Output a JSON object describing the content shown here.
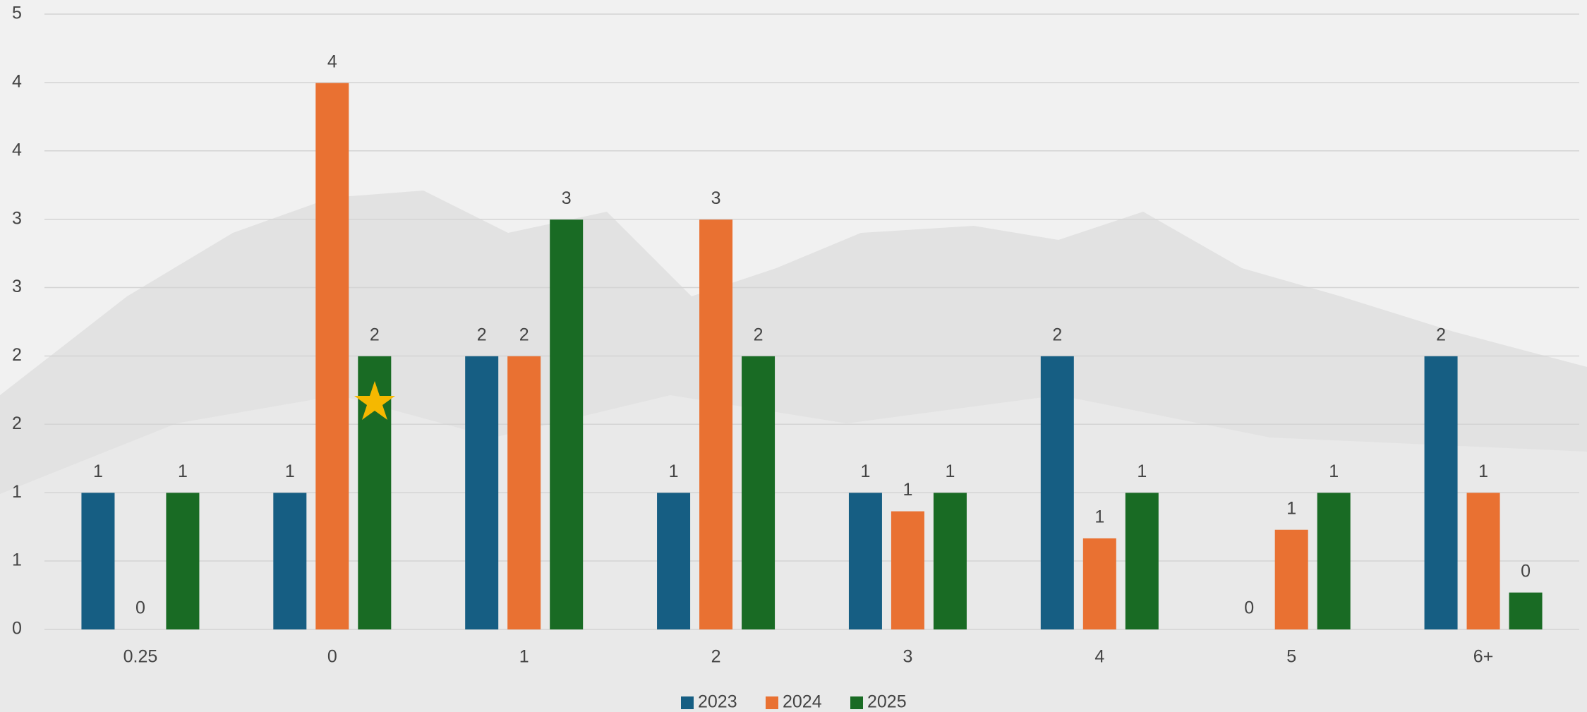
{
  "chart_data": {
    "type": "bar",
    "categories": [
      "0.25",
      "0",
      "1",
      "2",
      "3",
      "4",
      "5",
      "6+"
    ],
    "series": [
      {
        "name": "2023",
        "color": "#165e83",
        "values": [
          1.11,
          1.11,
          2.22,
          1.11,
          1.11,
          2.22,
          0,
          2.22
        ],
        "value_labels": [
          "1",
          "1",
          "2",
          "1",
          "1",
          "2",
          "0",
          "2"
        ]
      },
      {
        "name": "2024",
        "color": "#e97132",
        "values": [
          0,
          4.44,
          2.22,
          3.33,
          0.96,
          0.74,
          0.81,
          1.11
        ],
        "value_labels": [
          "0",
          "4",
          "2",
          "3",
          "1",
          "1",
          "1",
          "1"
        ]
      },
      {
        "name": "2025",
        "color": "#196b24",
        "values": [
          1.11,
          2.22,
          3.33,
          2.22,
          1.11,
          1.11,
          1.11,
          0.3
        ],
        "value_labels": [
          "1",
          "2",
          "3",
          "2",
          "1",
          "1",
          "1",
          "0"
        ]
      }
    ],
    "ylim": [
      0,
      5
    ],
    "yticks": [
      0,
      {
        "value": 0.556,
        "label": "1"
      },
      {
        "value": 1.111,
        "label": "1"
      },
      {
        "value": 1.667,
        "label": "2"
      },
      {
        "value": 2.222,
        "label": "2"
      },
      {
        "value": 2.778,
        "label": "3"
      },
      {
        "value": 3.333,
        "label": "3"
      },
      {
        "value": 3.889,
        "label": "4"
      },
      {
        "value": 4.444,
        "label": "4"
      },
      5
    ],
    "grid": true,
    "legend": "bottom"
  }
}
